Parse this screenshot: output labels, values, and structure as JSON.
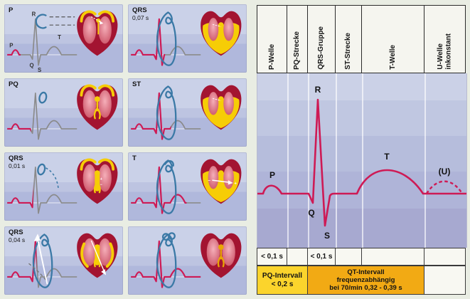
{
  "colors": {
    "ecg_red": "#CE1A55",
    "trace_gray": "#8A8A8A",
    "loop_blue": "#3B79A6",
    "heart_dark": "#A31431",
    "heart_pink_light": "#F5AFB9",
    "heart_pink_deep": "#C94F63",
    "conduction_yellow": "#F6CD06",
    "conduction_orange": "#E8A604",
    "box_yellow": "#FBD42C",
    "box_orange": "#F2AA14",
    "cell_white": "#F8F8F2"
  },
  "left_panels": [
    {
      "label": "P",
      "sublabel": "",
      "loop_icon": "crescent-loop",
      "heart_state": "atria-activation",
      "ecg_stage": "p",
      "ecg_labels": {
        "r": "R",
        "p": "P",
        "t": "T",
        "q": "Q",
        "s": "S"
      }
    },
    {
      "label": "QRS",
      "sublabel": "0,07 s",
      "loop_icon": "full-loop",
      "heart_state": "ventricles-full",
      "ecg_stage": "qrs_end"
    },
    {
      "label": "PQ",
      "sublabel": "",
      "loop_icon": "small-oval-loop",
      "heart_state": "av-node",
      "ecg_stage": "pq"
    },
    {
      "label": "ST",
      "sublabel": "",
      "loop_icon": "full-loop",
      "heart_state": "ventricles-full",
      "ecg_stage": "st"
    },
    {
      "label": "QRS",
      "sublabel": "0,01 s",
      "loop_icon": "small-oval-dashed-arc",
      "heart_state": "septum-activation",
      "ecg_stage": "q_start"
    },
    {
      "label": "T",
      "sublabel": "",
      "loop_icon": "full-loop-curl",
      "heart_state": "repolarization",
      "ecg_stage": "t"
    },
    {
      "label": "QRS",
      "sublabel": "0,04 s",
      "loop_icon": "loop-white-arrow",
      "heart_state": "wall-spread",
      "ecg_stage": "r_peak"
    },
    {
      "label": "",
      "sublabel": "",
      "loop_icon": "full-loop-twist",
      "heart_state": "diastole",
      "ecg_stage": "full"
    }
  ],
  "right_diagram": {
    "column_headers": [
      [
        "P-Welle"
      ],
      [
        "PQ-Strecke"
      ],
      [
        "QRS-Gruppe"
      ],
      [
        "ST-Strecke"
      ],
      [
        "T-Welle"
      ],
      [
        "U-Welle",
        "inkonstant"
      ]
    ],
    "wave_labels": {
      "p": "P",
      "q": "Q",
      "r": "R",
      "s": "S",
      "t": "T",
      "u": "(U)"
    },
    "duration_row": [
      "< 0,1 s",
      "",
      "< 0,1 s",
      "",
      "",
      ""
    ],
    "interval_boxes": [
      {
        "lines": [
          "PQ-Intervall",
          "< 0,2 s"
        ],
        "color_key": "yellow"
      },
      {
        "lines": [
          "QT-Intervall",
          "frequenzabhängig",
          "bei 70/min  0,32 - 0,39 s"
        ],
        "color_key": "orange"
      },
      {
        "lines": [],
        "color_key": "white"
      }
    ]
  }
}
